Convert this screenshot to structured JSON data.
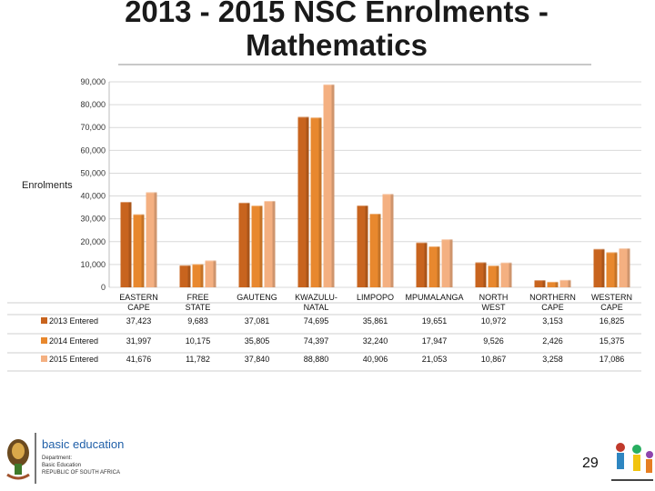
{
  "title": "2013 - 2015 NSC Enrolments - Mathematics",
  "chart_data": {
    "type": "bar",
    "ylabel": "Enrolments",
    "ylim": [
      0,
      90000
    ],
    "yticks": [
      "0",
      "10,000",
      "20,000",
      "30,000",
      "40,000",
      "50,000",
      "60,000",
      "70,000",
      "80,000",
      "90,000"
    ],
    "grid": true,
    "categories": [
      "EASTERN CAPE",
      "FREE STATE",
      "GAUTENG",
      "KWAZULU-NATAL",
      "LIMPOPO",
      "MPUMALANGA",
      "NORTH WEST",
      "NORTHERN CAPE",
      "WESTERN CAPE"
    ],
    "series": [
      {
        "name": "2013 Entered",
        "values": [
          37423,
          9683,
          37081,
          74695,
          35861,
          19651,
          10972,
          3153,
          16825
        ],
        "labels": [
          "37,423",
          "9,683",
          "37,081",
          "74,695",
          "35,861",
          "19,651",
          "10,972",
          "3,153",
          "16,825"
        ]
      },
      {
        "name": "2014 Entered",
        "values": [
          31997,
          10175,
          35805,
          74397,
          32240,
          17947,
          9526,
          2426,
          15375
        ],
        "labels": [
          "31,997",
          "10,175",
          "35,805",
          "74,397",
          "32,240",
          "17,947",
          "9,526",
          "2,426",
          "15,375"
        ]
      },
      {
        "name": "2015 Entered",
        "values": [
          41676,
          11782,
          37840,
          88880,
          40906,
          21053,
          10867,
          3258,
          17086
        ],
        "labels": [
          "41,676",
          "11,782",
          "37,840",
          "88,880",
          "40,906",
          "21,053",
          "10,867",
          "3,258",
          "17,086"
        ]
      }
    ],
    "colors": [
      "#c8641e",
      "#e8882e",
      "#f4b081"
    ]
  },
  "footer": {
    "org_line1": "basic education",
    "org_line2": "Department:",
    "org_line3": "Basic Education",
    "org_line4": "REPUBLIC OF SOUTH AFRICA",
    "page_number": "29"
  }
}
